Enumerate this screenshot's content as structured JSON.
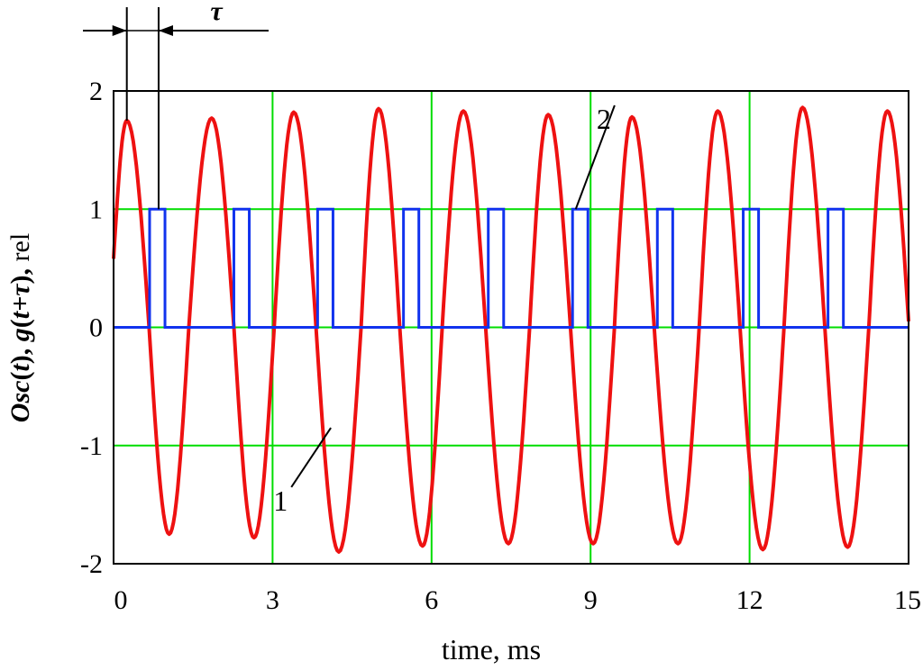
{
  "chart_data": {
    "type": "line",
    "title": "",
    "xlabel": "time, ms",
    "ylabel": {
      "parts": [
        "Osc",
        "(",
        "t",
        "),  ",
        "g",
        "(",
        "t+τ",
        "),  ",
        "rel"
      ]
    },
    "xlim": [
      0,
      15
    ],
    "ylim": [
      -2,
      2
    ],
    "x_ticks": [
      "0",
      "3",
      "6",
      "9",
      "12",
      "15"
    ],
    "x_tick_values": [
      0,
      3,
      6,
      9,
      12,
      15
    ],
    "y_ticks": [
      "2",
      "1",
      "0",
      "-1",
      "-2"
    ],
    "y_tick_values": [
      2,
      1,
      0,
      -1,
      -2
    ],
    "grid": true,
    "grid_color": "#00dd00",
    "series": [
      {
        "name": "1",
        "color": "#ee1111",
        "style": "smooth",
        "points": [
          [
            0.0,
            0.58
          ],
          [
            0.25,
            1.75
          ],
          [
            0.67,
            0.0
          ],
          [
            1.05,
            -1.75
          ],
          [
            1.42,
            0.0
          ],
          [
            1.85,
            1.77
          ],
          [
            2.27,
            0.0
          ],
          [
            2.65,
            -1.78
          ],
          [
            3.03,
            0.0
          ],
          [
            3.4,
            1.82
          ],
          [
            3.82,
            0.0
          ],
          [
            4.25,
            -1.9
          ],
          [
            4.67,
            0.0
          ],
          [
            5.0,
            1.85
          ],
          [
            5.4,
            0.0
          ],
          [
            5.83,
            -1.85
          ],
          [
            6.2,
            0.0
          ],
          [
            6.6,
            1.83
          ],
          [
            7.02,
            0.0
          ],
          [
            7.45,
            -1.83
          ],
          [
            7.85,
            0.0
          ],
          [
            8.2,
            1.8
          ],
          [
            8.62,
            0.0
          ],
          [
            9.05,
            -1.83
          ],
          [
            9.45,
            0.0
          ],
          [
            9.78,
            1.78
          ],
          [
            10.2,
            0.0
          ],
          [
            10.65,
            -1.83
          ],
          [
            11.05,
            0.0
          ],
          [
            11.4,
            1.83
          ],
          [
            11.82,
            0.0
          ],
          [
            12.25,
            -1.88
          ],
          [
            12.65,
            0.0
          ],
          [
            13.0,
            1.86
          ],
          [
            13.42,
            0.0
          ],
          [
            13.85,
            -1.86
          ],
          [
            14.25,
            0.0
          ],
          [
            14.6,
            1.83
          ],
          [
            15.0,
            0.05
          ]
        ]
      },
      {
        "name": "2",
        "color": "#1133ee",
        "style": "step",
        "pulse_height": 1,
        "pulses": [
          [
            0.68,
            0.97
          ],
          [
            2.27,
            2.56
          ],
          [
            3.85,
            4.14
          ],
          [
            5.47,
            5.76
          ],
          [
            7.07,
            7.36
          ],
          [
            8.66,
            8.95
          ],
          [
            10.26,
            10.55
          ],
          [
            11.88,
            12.17
          ],
          [
            13.48,
            13.77
          ]
        ]
      }
    ],
    "annotations": [
      {
        "text": "1",
        "target": [
          4.1,
          -0.85
        ],
        "label_at": [
          3.15,
          -1.55
        ]
      },
      {
        "text": "2",
        "target": [
          8.72,
          1.0
        ],
        "label_at": [
          9.25,
          1.68
        ]
      }
    ],
    "tau_marker": {
      "text": "τ",
      "from": 0.25,
      "to": 0.85
    }
  }
}
